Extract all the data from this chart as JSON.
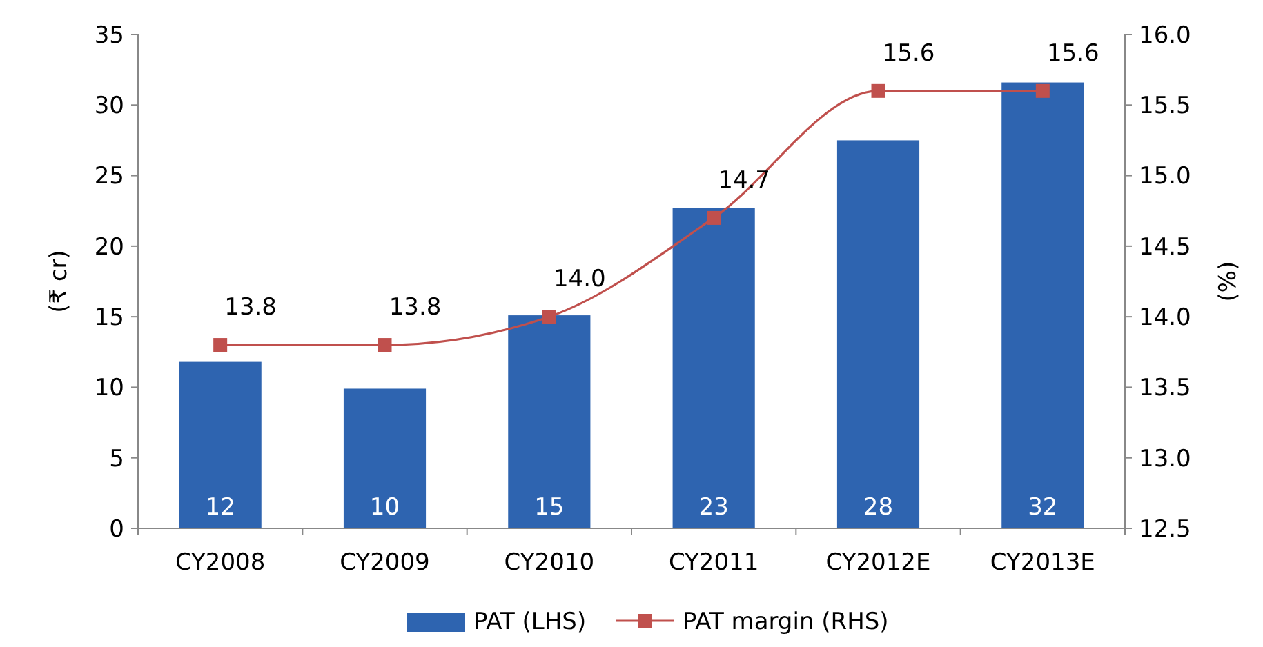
{
  "chart_data": {
    "type": "bar",
    "categories": [
      "CY2008",
      "CY2009",
      "CY2010",
      "CY2011",
      "CY2012E",
      "CY2013E"
    ],
    "series": [
      {
        "name": "PAT (LHS)",
        "color": "#2e64b0",
        "values": [
          11.8,
          9.9,
          15.1,
          22.7,
          27.5,
          31.6
        ],
        "value_labels": [
          "12",
          "10",
          "15",
          "23",
          "28",
          "32"
        ]
      },
      {
        "name": "PAT margin (RHS)",
        "type": "line",
        "axis": "y2",
        "color": "#c0504d",
        "marker": "square",
        "values": [
          13.8,
          13.8,
          14.0,
          14.7,
          15.6,
          15.6
        ],
        "value_labels": [
          "13.8",
          "13.8",
          "14.0",
          "14.7",
          "15.6",
          "15.6"
        ]
      }
    ],
    "ylabel": "(₹ cr)",
    "y2label": "(%)",
    "ylim": [
      0,
      35
    ],
    "yticks": [
      0,
      5,
      10,
      15,
      20,
      25,
      30,
      35
    ],
    "y2lim": [
      12.5,
      16.0
    ],
    "y2ticks": [
      {
        "value": 12.5,
        "label": "12.5"
      },
      {
        "value": 13.0,
        "label": "13.0"
      },
      {
        "value": 13.5,
        "label": "13.5"
      },
      {
        "value": 14.0,
        "label": "14.0"
      },
      {
        "value": 14.5,
        "label": "14.5"
      },
      {
        "value": 15.0,
        "label": "15.0"
      },
      {
        "value": 15.5,
        "label": "15.5"
      },
      {
        "value": 16.0,
        "label": "16.0"
      }
    ],
    "legend": "bottom",
    "grid": false
  }
}
